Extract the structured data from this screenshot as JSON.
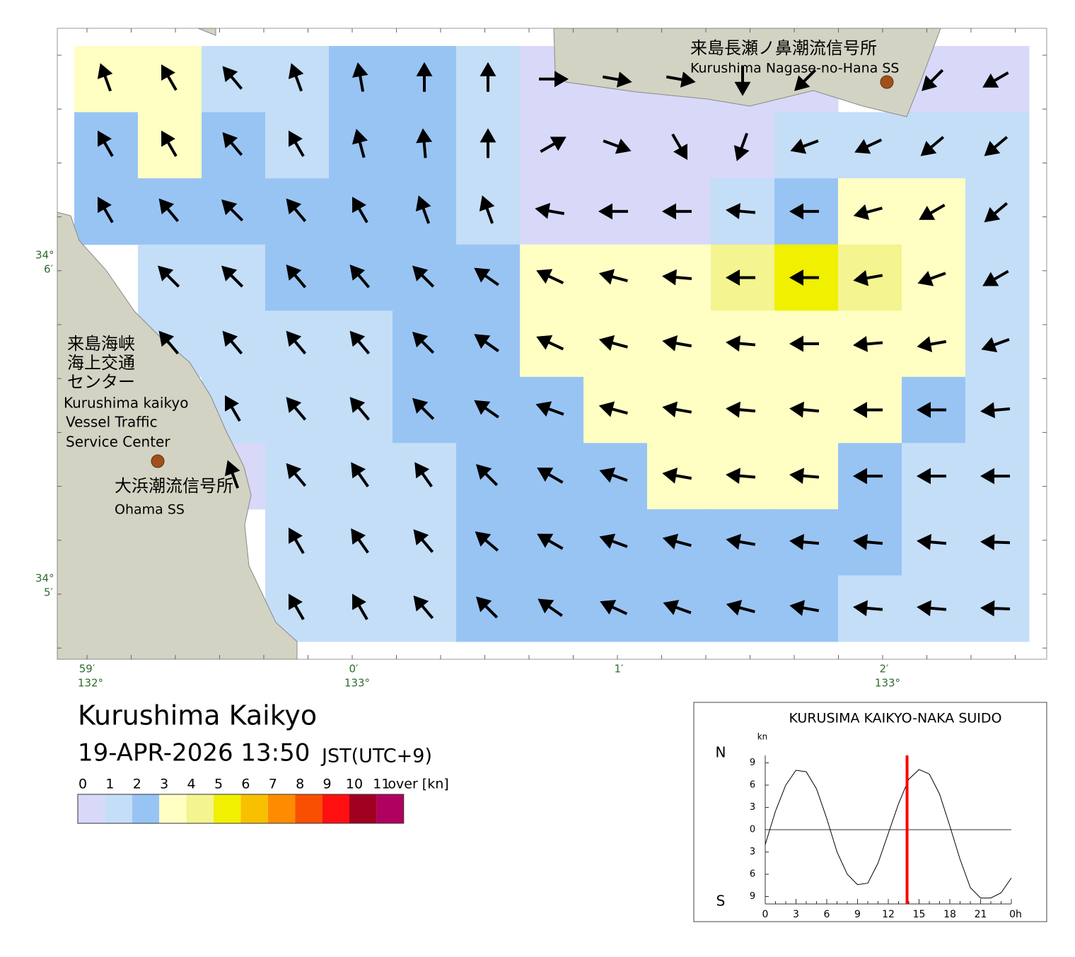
{
  "map": {
    "labels": {
      "nagase_jp": "来島長瀬ノ鼻潮流信号所",
      "nagase_en": "Kurushima Nagase-no-Hana SS",
      "vts_jp": [
        "来島海峡",
        "海上交通",
        "センター"
      ],
      "vts_en": [
        "Kurushima kaikyo",
        "Vessel Traffic",
        "Service Center"
      ],
      "ohama_jp": "大浜潮流信号所",
      "ohama_en": "Ohama SS"
    },
    "lat_labels": [
      {
        "deg": "34°",
        "min": "6′"
      },
      {
        "deg": "34°",
        "min": "5′"
      }
    ],
    "lon_labels": [
      {
        "deg": "132°",
        "min": "59′"
      },
      {
        "deg": "133°",
        "min": "0′"
      },
      {
        "deg": null,
        "min": "1′"
      },
      {
        "deg": "133°",
        "min": "2′"
      }
    ],
    "field": {
      "speed": [
        [
          3.5,
          3.5,
          1.5,
          1.5,
          2,
          2.5,
          1.5,
          0.5,
          0.5,
          0.5,
          0.5,
          0.5,
          null,
          0.5,
          0.8
        ],
        [
          2,
          3,
          2,
          1.5,
          2,
          2,
          1.5,
          0.5,
          0.5,
          0.5,
          0.5,
          1.2,
          1.5,
          1.5,
          1.5
        ],
        [
          2,
          2.5,
          2,
          2,
          2,
          2,
          1.5,
          0.5,
          0.8,
          0.8,
          1,
          2,
          3.5,
          3.5,
          1.5
        ],
        [
          null,
          1.5,
          1.5,
          2,
          2,
          2,
          2,
          3.5,
          3.5,
          3.5,
          4,
          5.5,
          4,
          3.5,
          1.5
        ],
        [
          null,
          1.5,
          1.5,
          1.5,
          1.5,
          2,
          2,
          3,
          3.5,
          3.5,
          3.5,
          3.5,
          3.5,
          3.5,
          1.5
        ],
        [
          null,
          null,
          1,
          1.5,
          1.5,
          2,
          2,
          2,
          3.5,
          3.5,
          3.5,
          3.5,
          3.5,
          2,
          1.5
        ],
        [
          null,
          null,
          0.5,
          1.8,
          1.5,
          1.5,
          2,
          2,
          2,
          3.5,
          3.5,
          3.5,
          2,
          1.5,
          1.5
        ],
        [
          null,
          null,
          null,
          1.5,
          1.5,
          1.5,
          2,
          2,
          2,
          2,
          2,
          2,
          2,
          1.5,
          1.5
        ],
        [
          null,
          null,
          null,
          1.5,
          1.5,
          1.8,
          2,
          2,
          2,
          2,
          2,
          2,
          1.5,
          1.5,
          1.5
        ]
      ],
      "direction": [
        [
          340,
          330,
          320,
          340,
          350,
          0,
          0,
          90,
          100,
          100,
          180,
          225,
          null,
          225,
          240
        ],
        [
          330,
          330,
          320,
          330,
          345,
          355,
          0,
          60,
          110,
          150,
          200,
          250,
          245,
          230,
          230
        ],
        [
          330,
          320,
          315,
          320,
          330,
          340,
          340,
          280,
          270,
          270,
          275,
          270,
          255,
          240,
          230
        ],
        [
          null,
          315,
          315,
          320,
          320,
          315,
          305,
          295,
          285,
          275,
          270,
          270,
          260,
          250,
          240
        ],
        [
          null,
          320,
          320,
          320,
          320,
          315,
          305,
          295,
          285,
          280,
          275,
          270,
          265,
          260,
          250
        ],
        [
          null,
          null,
          330,
          320,
          320,
          315,
          305,
          290,
          285,
          280,
          275,
          275,
          270,
          270,
          265
        ],
        [
          null,
          null,
          340,
          320,
          325,
          325,
          315,
          300,
          290,
          280,
          275,
          275,
          270,
          270,
          270
        ],
        [
          null,
          null,
          null,
          330,
          325,
          320,
          310,
          300,
          290,
          285,
          280,
          275,
          275,
          275,
          272
        ],
        [
          null,
          null,
          null,
          330,
          330,
          320,
          315,
          305,
          295,
          290,
          285,
          280,
          275,
          275,
          272
        ]
      ]
    }
  },
  "header": {
    "title": "Kurushima Kaikyo",
    "datetime": "19-APR-2026 13:50",
    "timezone": "JST(UTC+9)"
  },
  "legend": {
    "bounds": [
      0,
      1,
      2,
      3,
      4,
      5,
      6,
      7,
      8,
      9,
      10,
      11
    ],
    "over_label": "over [kn]",
    "colors": [
      "#d8d8f8",
      "#c4def8",
      "#98c4f4",
      "#ffffc4",
      "#f4f490",
      "#f0f000",
      "#f8c000",
      "#ff8c00",
      "#f85000",
      "#ff1010",
      "#a00020",
      "#b00060"
    ]
  },
  "chart_data": {
    "type": "line",
    "title": "KURUSIMA KAIKYO-NAKA SUIDO",
    "y_unit": "kn",
    "north_label": "N",
    "south_label": "S",
    "x": [
      0,
      1,
      2,
      3,
      4,
      5,
      6,
      7,
      8,
      9,
      10,
      11,
      12,
      13,
      14,
      15,
      16,
      17,
      18,
      19,
      20,
      21,
      22,
      23,
      24
    ],
    "values": [
      -2,
      2.5,
      6,
      8,
      7.8,
      5.5,
      1.5,
      -3,
      -6,
      -7.4,
      -7.2,
      -4.5,
      -0.5,
      3.5,
      6.8,
      8.1,
      7.5,
      4.8,
      0.5,
      -4,
      -7.8,
      -9.2,
      -9.2,
      -8.5,
      -6.5
    ],
    "color": "#000000",
    "now_hour": 13.83,
    "now_color": "#ff0000",
    "xlim": [
      0,
      24
    ],
    "xticks": [
      0,
      3,
      6,
      9,
      12,
      15,
      18,
      21,
      {
        "value": 24,
        "label": "0h"
      }
    ],
    "ylim": [
      -10,
      10
    ],
    "yticks": [
      {
        "value": -9,
        "label": "9"
      },
      {
        "value": -6,
        "label": "6"
      },
      {
        "value": -3,
        "label": "3"
      },
      0,
      3,
      6,
      9
    ]
  }
}
